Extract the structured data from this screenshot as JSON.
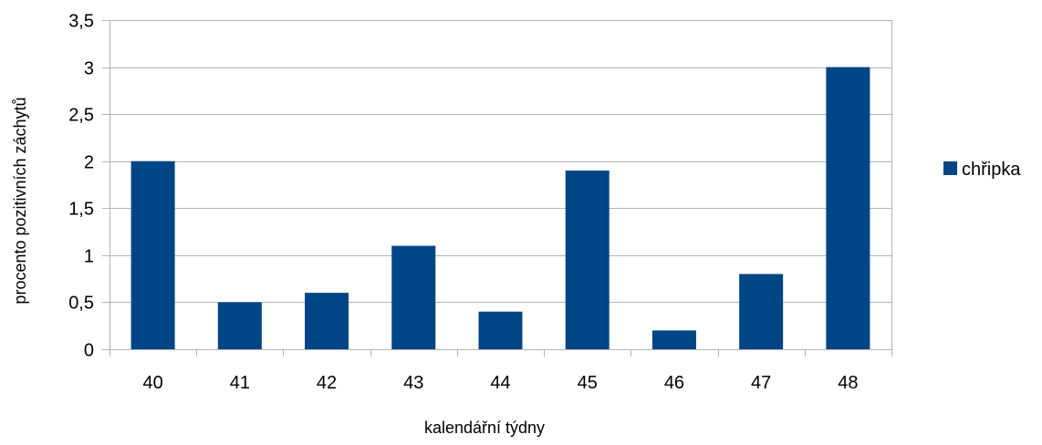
{
  "chart_data": {
    "type": "bar",
    "categories": [
      "40",
      "41",
      "42",
      "43",
      "44",
      "45",
      "46",
      "47",
      "48"
    ],
    "series": [
      {
        "name": "chřipka",
        "values": [
          2.0,
          0.5,
          0.6,
          1.1,
          0.4,
          1.9,
          0.2,
          0.8,
          3.0
        ],
        "color": "#004586"
      }
    ],
    "xlabel": "kalendářní týdny",
    "ylabel": "procento pozitivních záchytů",
    "ylim": [
      0,
      3.5
    ],
    "yticks": [
      {
        "value": 0,
        "label": "0"
      },
      {
        "value": 0.5,
        "label": "0,5"
      },
      {
        "value": 1,
        "label": "1"
      },
      {
        "value": 1.5,
        "label": "1,5"
      },
      {
        "value": 2,
        "label": "2"
      },
      {
        "value": 2.5,
        "label": "2,5"
      },
      {
        "value": 3,
        "label": "3"
      },
      {
        "value": 3.5,
        "label": "3,5"
      }
    ],
    "grid": true,
    "legend": {
      "position": "right",
      "entries": [
        "chřipka"
      ]
    }
  }
}
